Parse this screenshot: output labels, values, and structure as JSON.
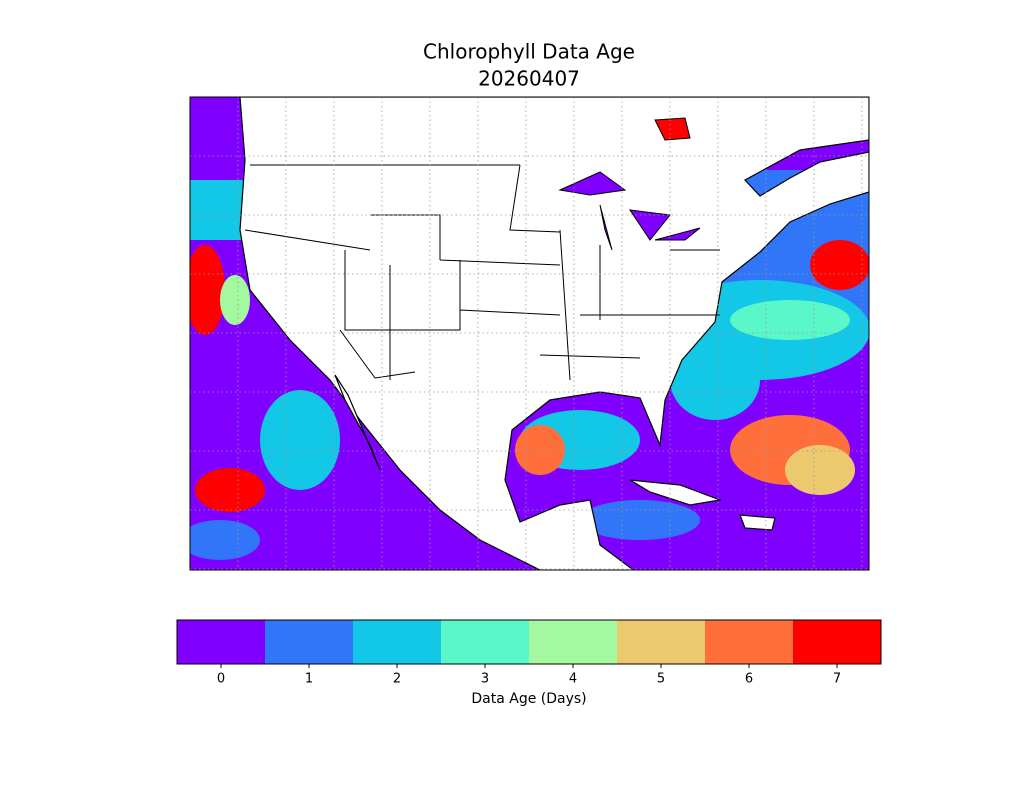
{
  "title": [
    "Chlorophyll Data Age",
    "20260407"
  ],
  "colorbar": {
    "label": "Data Age (Days)",
    "ticks": [
      0,
      1,
      2,
      3,
      4,
      5,
      6,
      7
    ],
    "colors": [
      "#8000ff",
      "#3176f8",
      "#12c8e6",
      "#5af8c8",
      "#a4f89f",
      "#ecc86f",
      "#ff6f3b",
      "#ff0000"
    ]
  }
}
